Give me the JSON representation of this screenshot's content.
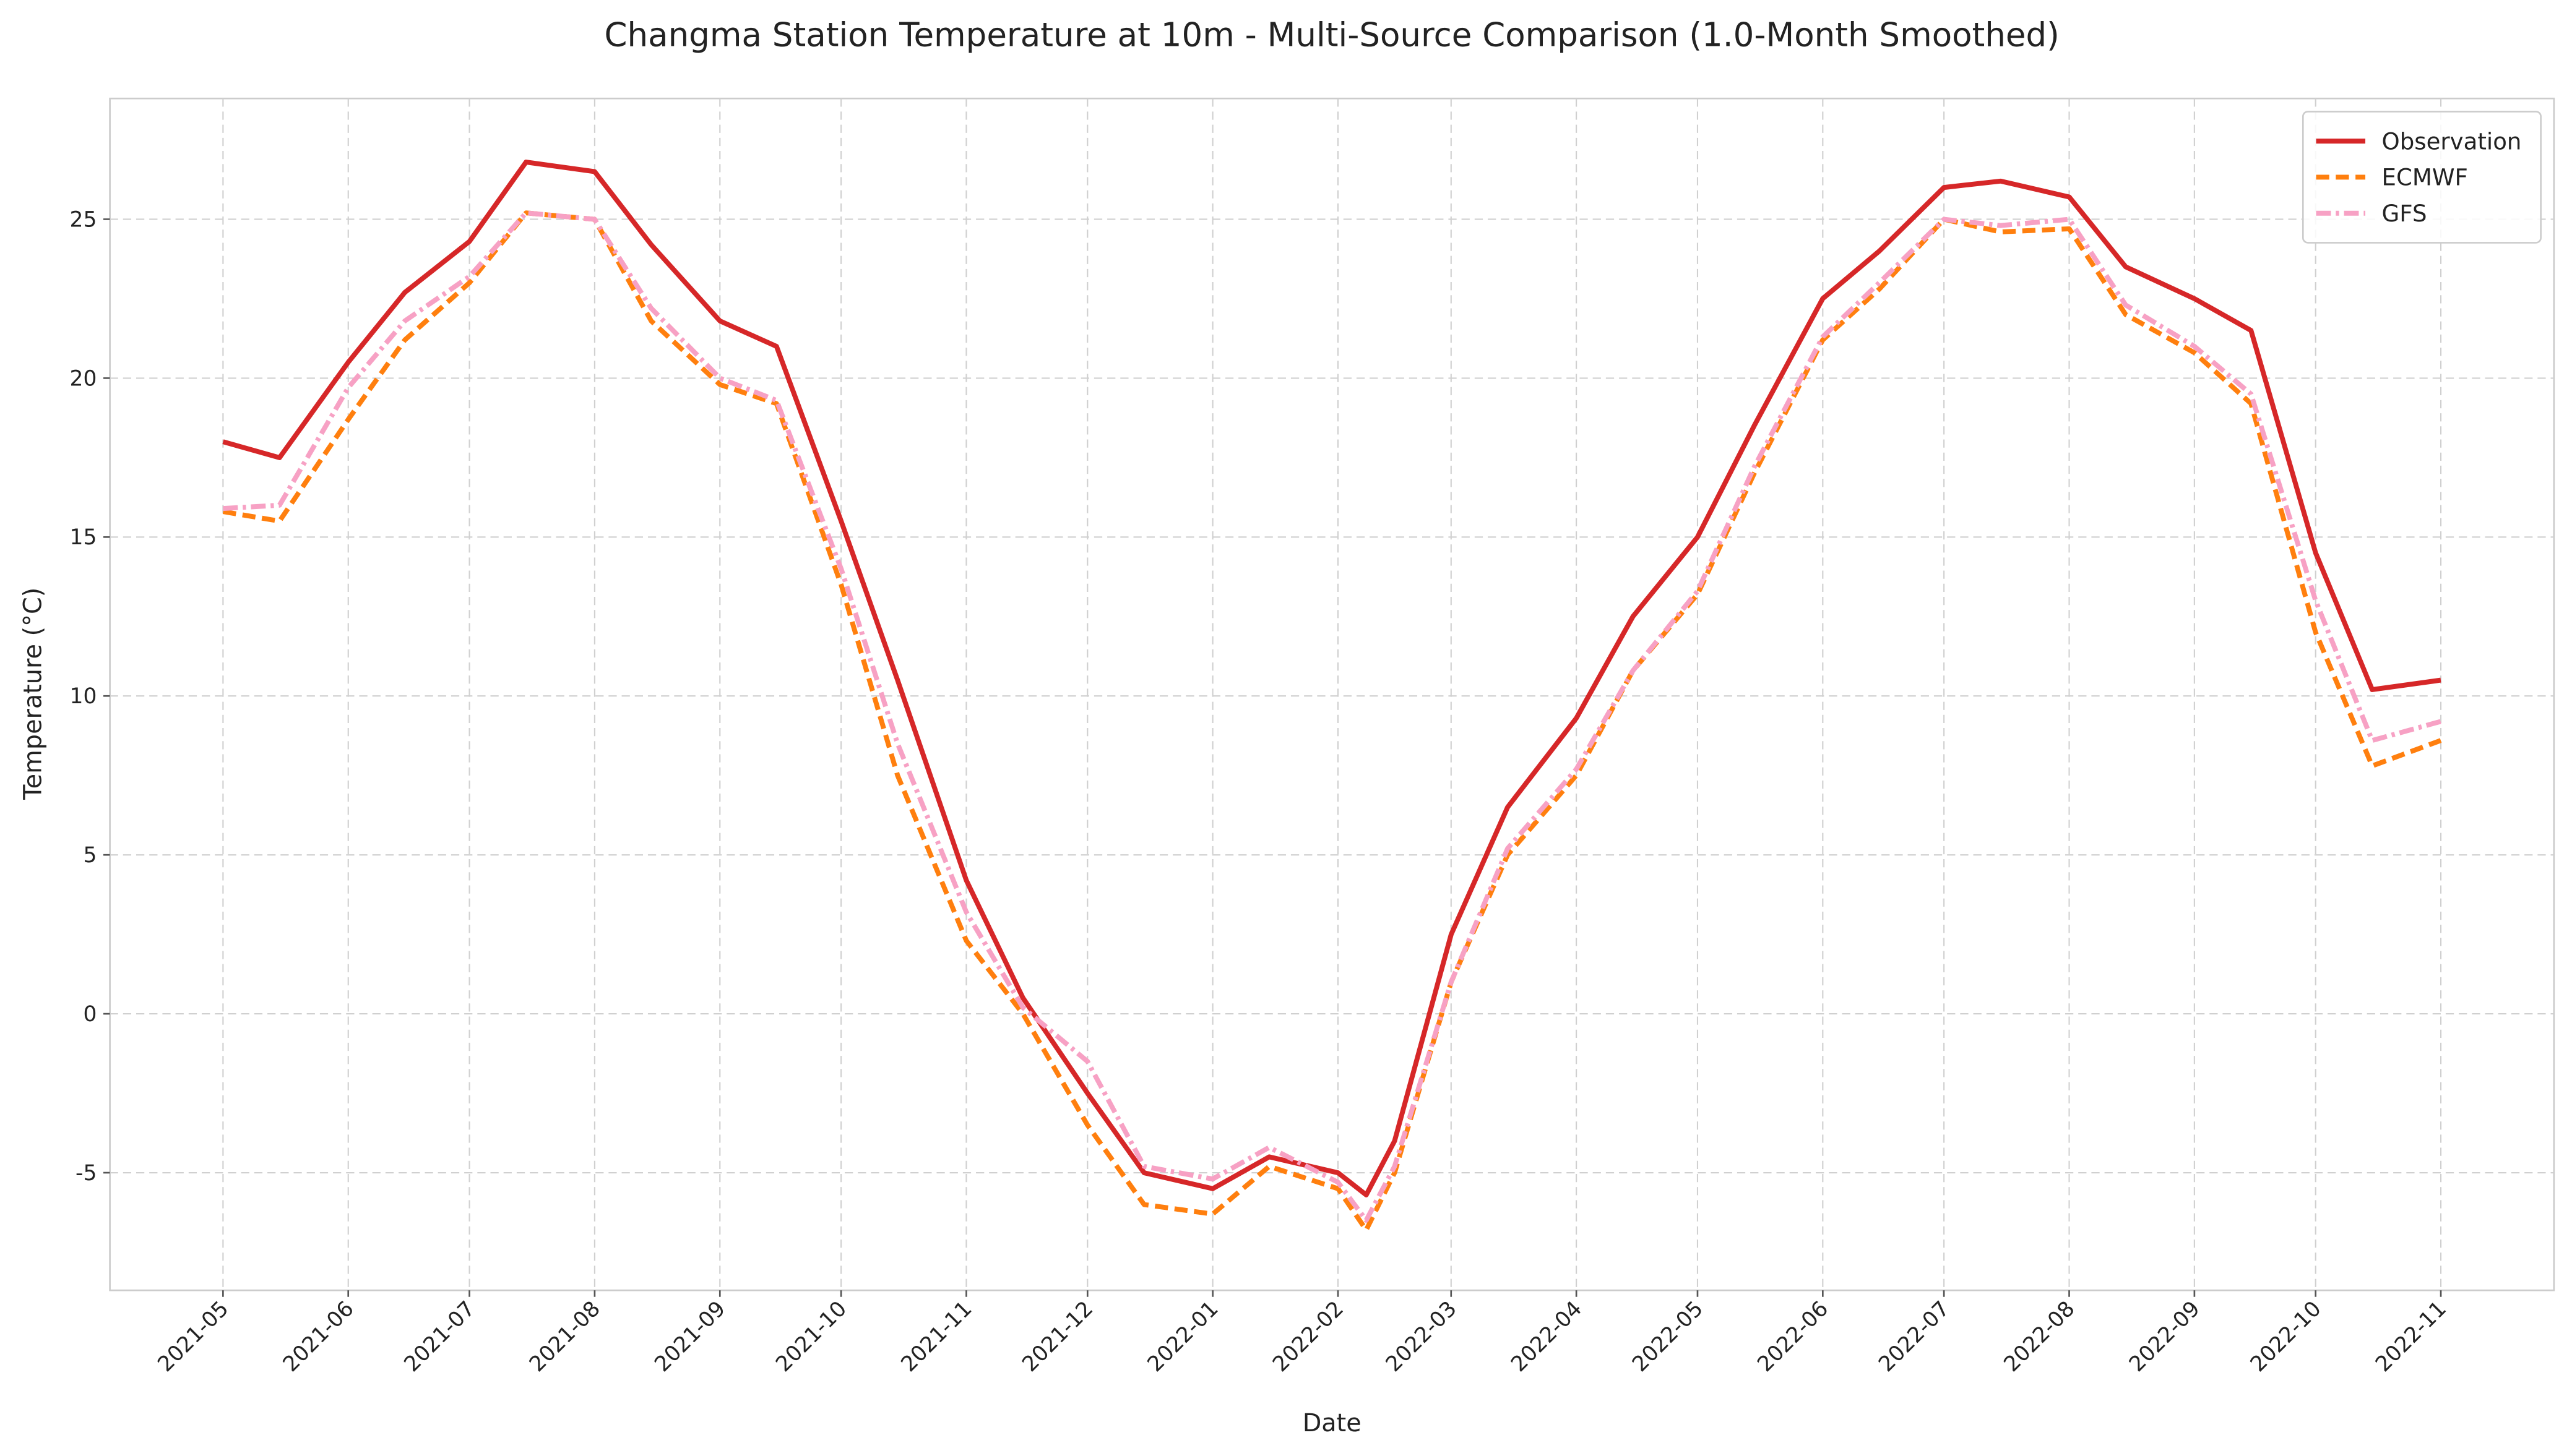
{
  "chart_data": {
    "type": "line",
    "title": "Changma Station Temperature at 10m - Multi-Source Comparison (1.0-Month Smoothed)",
    "x_label": "Date",
    "y_label": "Temperature (°C)",
    "x": [
      "2021-05-01",
      "2021-05-15",
      "2021-06-01",
      "2021-06-15",
      "2021-07-01",
      "2021-07-15",
      "2021-08-01",
      "2021-08-15",
      "2021-09-01",
      "2021-09-15",
      "2021-10-01",
      "2021-10-15",
      "2021-11-01",
      "2021-11-15",
      "2021-12-01",
      "2021-12-15",
      "2022-01-01",
      "2022-01-15",
      "2022-02-01",
      "2022-02-08",
      "2022-02-15",
      "2022-03-01",
      "2022-03-15",
      "2022-04-01",
      "2022-04-15",
      "2022-05-01",
      "2022-05-15",
      "2022-06-01",
      "2022-06-15",
      "2022-07-01",
      "2022-07-15",
      "2022-08-01",
      "2022-08-15",
      "2022-09-01",
      "2022-09-15",
      "2022-10-01",
      "2022-10-15",
      "2022-11-01"
    ],
    "series": [
      {
        "name": "Observation",
        "color": "#d62728",
        "linestyle": "solid",
        "values": [
          18.0,
          17.5,
          20.5,
          22.7,
          24.3,
          26.8,
          26.5,
          24.2,
          21.8,
          21.0,
          15.5,
          10.5,
          4.2,
          0.5,
          -2.5,
          -5.0,
          -5.5,
          -4.5,
          -5.0,
          -5.7,
          -4.0,
          2.5,
          6.5,
          9.3,
          12.5,
          15.0,
          18.5,
          22.5,
          24.0,
          26.0,
          26.2,
          25.7,
          23.5,
          22.5,
          21.5,
          14.5,
          10.2,
          10.5
        ]
      },
      {
        "name": "ECMWF",
        "color": "#ff7f0e",
        "linestyle": "dashed",
        "values": [
          15.8,
          15.5,
          18.7,
          21.2,
          23.0,
          25.2,
          25.0,
          21.8,
          19.8,
          19.2,
          13.5,
          7.5,
          2.3,
          0.0,
          -3.5,
          -6.0,
          -6.3,
          -4.8,
          -5.5,
          -6.8,
          -5.0,
          1.0,
          5.0,
          7.5,
          10.8,
          13.2,
          17.0,
          21.2,
          22.8,
          25.0,
          24.6,
          24.7,
          22.0,
          20.8,
          19.2,
          12.0,
          7.8,
          8.6
        ]
      },
      {
        "name": "GFS",
        "color": "#f7a1c4",
        "linestyle": "dashdot",
        "values": [
          15.9,
          16.0,
          19.7,
          21.8,
          23.2,
          25.2,
          25.0,
          22.2,
          20.0,
          19.3,
          14.0,
          8.5,
          3.2,
          0.2,
          -1.5,
          -4.8,
          -5.2,
          -4.2,
          -5.3,
          -6.5,
          -4.8,
          1.0,
          5.2,
          7.7,
          10.8,
          13.3,
          17.2,
          21.3,
          23.0,
          25.0,
          24.8,
          25.0,
          22.3,
          21.0,
          19.5,
          13.0,
          8.6,
          9.2
        ]
      }
    ],
    "xlim": [
      "2021-04-03",
      "2022-11-29"
    ],
    "xticks": [
      "2021-05",
      "2021-06",
      "2021-07",
      "2021-08",
      "2021-09",
      "2021-10",
      "2021-11",
      "2021-12",
      "2022-01",
      "2022-02",
      "2022-03",
      "2022-04",
      "2022-05",
      "2022-06",
      "2022-07",
      "2022-08",
      "2022-09",
      "2022-10",
      "2022-11"
    ],
    "ylim": [
      -8.7,
      28.8
    ],
    "yticks": [
      -5,
      0,
      5,
      10,
      15,
      20,
      25
    ],
    "grid": true,
    "legend": "upper right"
  }
}
